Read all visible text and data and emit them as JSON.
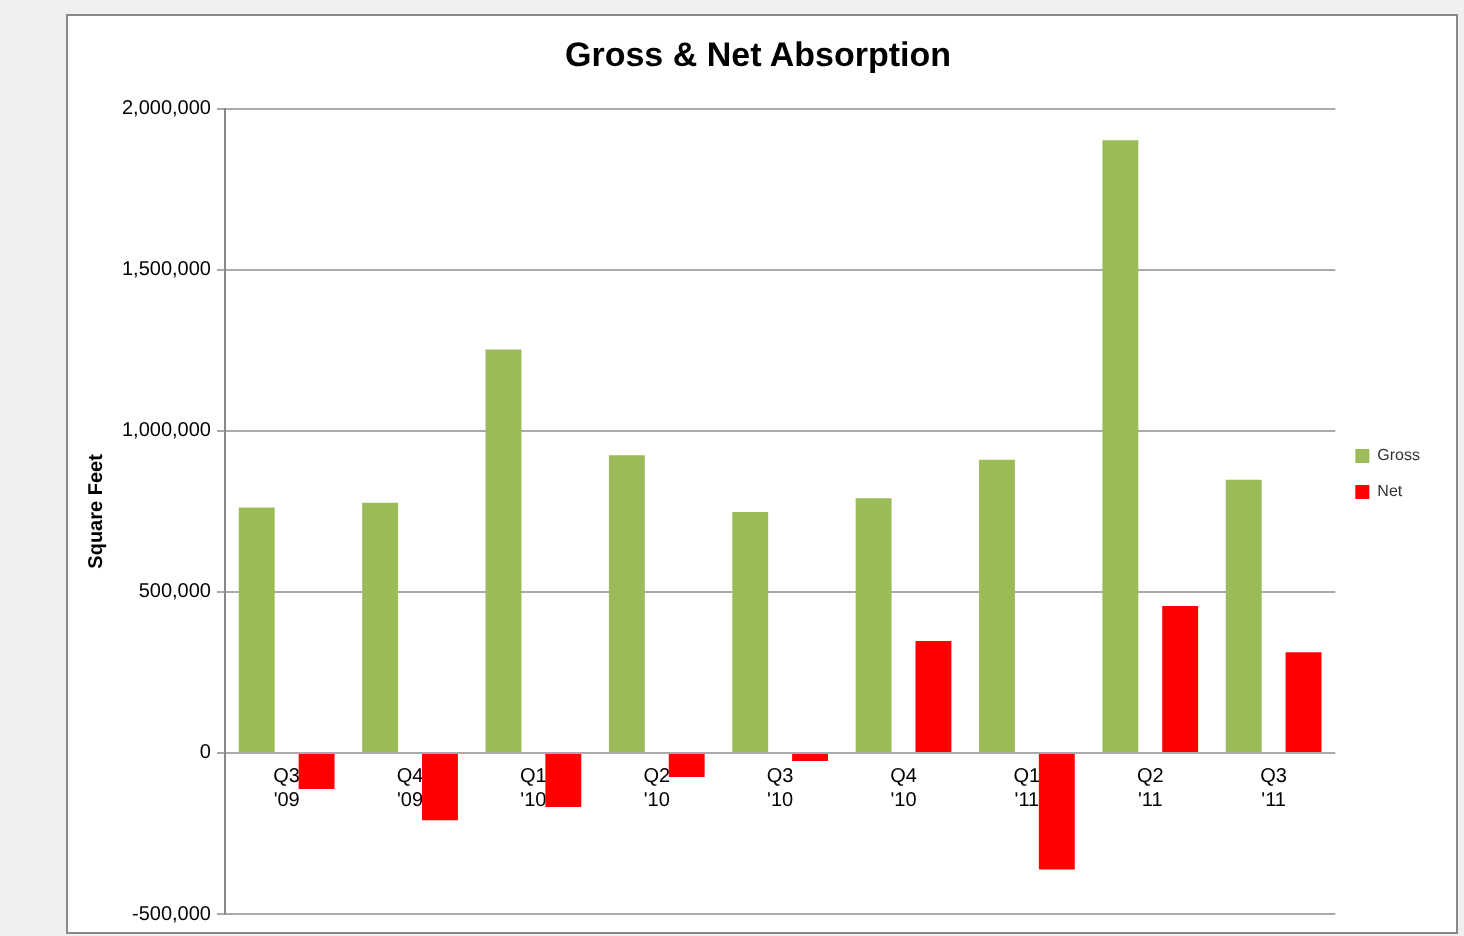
{
  "chart_data": {
    "type": "bar",
    "title": "Gross & Net Absorption",
    "ylabel": "Square Feet",
    "categories": [
      "Q3 '09",
      "Q4 '09",
      "Q1 '10",
      "Q2 '10",
      "Q3 '10",
      "Q4 '10",
      "Q1 '11",
      "Q2 '11",
      "Q3 '11"
    ],
    "series": [
      {
        "name": "Gross",
        "color": "#9bbb59",
        "values": [
          762000,
          777000,
          1253000,
          924000,
          748000,
          791000,
          910000,
          1902000,
          848000
        ]
      },
      {
        "name": "Net",
        "color": "#ff0000",
        "values": [
          -112000,
          -209000,
          -168000,
          -75000,
          -25000,
          348000,
          -362000,
          456000,
          313000
        ]
      }
    ],
    "ylim": [
      -500000,
      2000000
    ],
    "yticks": [
      {
        "value": -500000,
        "label": "-500,000"
      },
      {
        "value": 0,
        "label": "0"
      },
      {
        "value": 500000,
        "label": "500,000"
      },
      {
        "value": 1000000,
        "label": "1,000,000"
      },
      {
        "value": 1500000,
        "label": "1,500,000"
      },
      {
        "value": 2000000,
        "label": "2,000,000"
      }
    ],
    "grid": "y",
    "legend": "right"
  }
}
